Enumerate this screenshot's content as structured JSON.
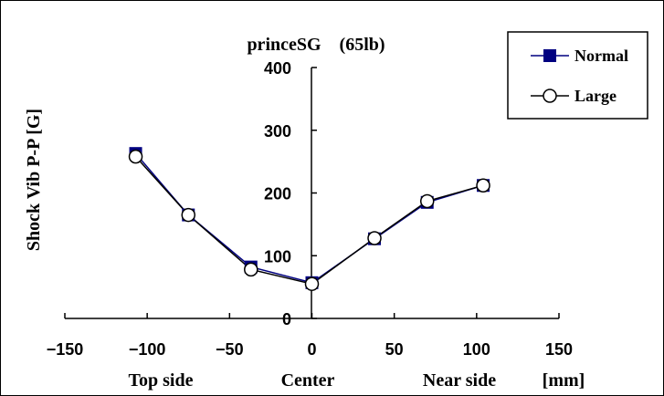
{
  "chart_data": {
    "type": "line",
    "title": "princeSG　(65lb)",
    "ylabel": "Shock Vib P-P [G]",
    "xlim": [
      -150,
      150
    ],
    "ylim": [
      0,
      400
    ],
    "x_ticks": [
      "−150",
      "−100",
      "−50",
      "0",
      "50",
      "100",
      "150"
    ],
    "y_ticks": [
      "0",
      "100",
      "200",
      "300",
      "400"
    ],
    "x_sublabels": {
      "left": "Top side",
      "center": "Center",
      "right": "Near side",
      "unit": "[mm]"
    },
    "x": [
      -107,
      -75,
      -37,
      0,
      38,
      70,
      104
    ],
    "series": [
      {
        "name": "Normal",
        "marker": "filled-square",
        "color": "#000080",
        "values": [
          263,
          165,
          82,
          57,
          127,
          185,
          212
        ]
      },
      {
        "name": "Large",
        "marker": "open-circle",
        "color": "#000000",
        "values": [
          258,
          165,
          78,
          55,
          128,
          187,
          212
        ]
      }
    ],
    "legend_position": "top-right",
    "grid": false
  }
}
